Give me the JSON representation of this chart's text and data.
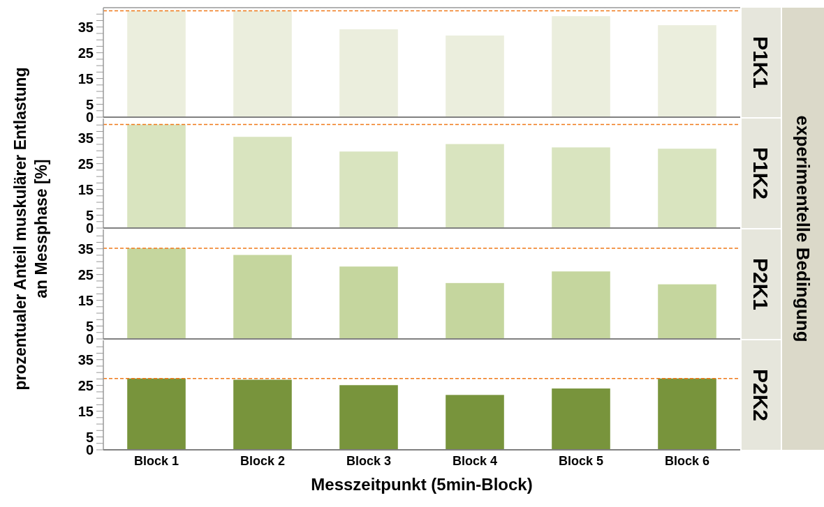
{
  "chart_data": [
    {
      "type": "bar",
      "title": "P1K1",
      "ylabel": "prozentualer Anteil muskulärer Entlastung\nan Messphase [%]",
      "annotations": [
        "experimentelle Bedingung"
      ],
      "categories": [
        null,
        null,
        null,
        null,
        null,
        null
      ],
      "values": [
        41.3,
        41.3,
        34.1,
        31.7,
        39.2,
        35.7
      ],
      "color": "#ebeedd",
      "ylim": [
        0,
        42.5
      ],
      "yticks": [
        0,
        {
          "value": 2.5,
          "label": null
        },
        5,
        {
          "value": 7.5,
          "label": null
        },
        {
          "value": 10,
          "label": null
        },
        {
          "value": 12.5,
          "label": null
        },
        15,
        {
          "value": 17.5,
          "label": null
        },
        {
          "value": 20,
          "label": null
        },
        {
          "value": 22.5,
          "label": null
        },
        25,
        {
          "value": 27.5,
          "label": null
        },
        {
          "value": 30,
          "label": null
        },
        {
          "value": 32.5,
          "label": null
        },
        35,
        {
          "value": 37.5,
          "label": null
        },
        {
          "value": 40,
          "label": null
        }
      ],
      "ref_lines": [
        {
          "axis": "y",
          "value": 41.3,
          "color": "#f07818",
          "line_style": "dashed"
        }
      ]
    },
    {
      "type": "bar",
      "title": "P1K2",
      "categories": [
        null,
        null,
        null,
        null,
        null,
        null
      ],
      "values": [
        40.2,
        35.4,
        29.7,
        32.6,
        31.3,
        30.8
      ],
      "color": "#d9e4bf",
      "ylim": [
        0,
        42.5
      ],
      "yticks": [
        0,
        {
          "value": 2.5,
          "label": null
        },
        5,
        {
          "value": 7.5,
          "label": null
        },
        {
          "value": 10,
          "label": null
        },
        {
          "value": 12.5,
          "label": null
        },
        15,
        {
          "value": 17.5,
          "label": null
        },
        {
          "value": 20,
          "label": null
        },
        {
          "value": 22.5,
          "label": null
        },
        25,
        {
          "value": 27.5,
          "label": null
        },
        {
          "value": 30,
          "label": null
        },
        {
          "value": 32.5,
          "label": null
        },
        35,
        {
          "value": 37.5,
          "label": null
        },
        {
          "value": 40,
          "label": null
        }
      ],
      "ref_lines": [
        {
          "axis": "y",
          "value": 40.2,
          "color": "#f07818",
          "line_style": "dashed"
        }
      ]
    },
    {
      "type": "bar",
      "title": "P2K1",
      "categories": [
        null,
        null,
        null,
        null,
        null,
        null
      ],
      "values": [
        35.2,
        32.6,
        28.1,
        21.7,
        26.2,
        21.2
      ],
      "color": "#c5d69e",
      "ylim": [
        0,
        42.5
      ],
      "yticks": [
        0,
        {
          "value": 2.5,
          "label": null
        },
        5,
        {
          "value": 7.5,
          "label": null
        },
        {
          "value": 10,
          "label": null
        },
        {
          "value": 12.5,
          "label": null
        },
        15,
        {
          "value": 17.5,
          "label": null
        },
        {
          "value": 20,
          "label": null
        },
        {
          "value": 22.5,
          "label": null
        },
        25,
        {
          "value": 27.5,
          "label": null
        },
        {
          "value": 30,
          "label": null
        },
        {
          "value": 32.5,
          "label": null
        },
        35,
        {
          "value": 37.5,
          "label": null
        },
        {
          "value": 40,
          "label": null
        }
      ],
      "ref_lines": [
        {
          "axis": "y",
          "value": 35.2,
          "color": "#f07818",
          "line_style": "dashed"
        }
      ]
    },
    {
      "type": "bar",
      "title": "P2K2",
      "xlabel": "Messzeitpunkt (5min-Block)",
      "categories": [
        "Block 1",
        "Block 2",
        "Block 3",
        "Block 4",
        "Block 5",
        "Block 6"
      ],
      "values": [
        27.7,
        27.2,
        25.1,
        21.3,
        23.8,
        27.7
      ],
      "color": "#78943c",
      "ylim": [
        0,
        42.5
      ],
      "yticks": [
        0,
        {
          "value": 2.5,
          "label": null
        },
        5,
        {
          "value": 7.5,
          "label": null
        },
        {
          "value": 10,
          "label": null
        },
        {
          "value": 12.5,
          "label": null
        },
        15,
        {
          "value": 17.5,
          "label": null
        },
        {
          "value": 20,
          "label": null
        },
        {
          "value": 22.5,
          "label": null
        },
        25,
        {
          "value": 27.5,
          "label": null
        },
        {
          "value": 30,
          "label": null
        },
        {
          "value": 32.5,
          "label": null
        },
        35,
        {
          "value": 37.5,
          "label": null
        },
        {
          "value": 40,
          "label": null
        }
      ],
      "ref_lines": [
        {
          "axis": "y",
          "value": 27.7,
          "color": "#f07818",
          "line_style": "dashed"
        }
      ]
    }
  ]
}
